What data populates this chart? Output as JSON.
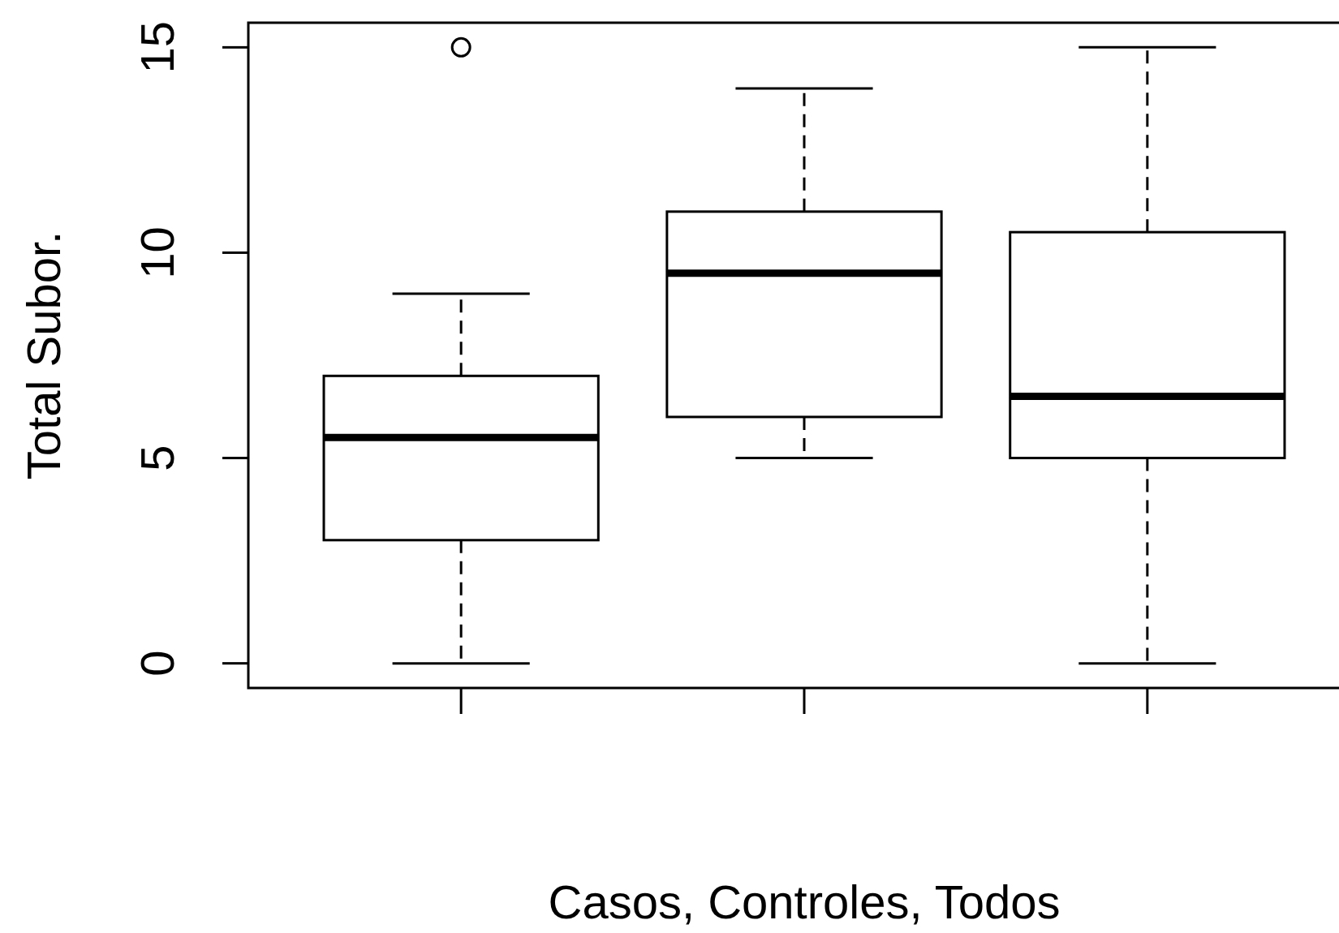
{
  "chart_data": {
    "type": "box",
    "xlabel": "Casos, Controles, Todos",
    "ylabel": "Total Subor.",
    "categories": [
      null,
      null,
      null
    ],
    "boxes": [
      {
        "low": 0,
        "q1": 3,
        "median": 5.5,
        "q3": 7,
        "high": 9,
        "outliers": [
          15
        ]
      },
      {
        "low": 5,
        "q1": 6,
        "median": 9.5,
        "q3": 11,
        "high": 14
      },
      {
        "low": 0,
        "q1": 5,
        "median": 6.5,
        "q3": 10.5,
        "high": 15
      }
    ],
    "ylim": [
      -0.6,
      15.6
    ],
    "yticks": [
      0,
      5,
      10,
      15
    ],
    "tick_labels": "y"
  }
}
